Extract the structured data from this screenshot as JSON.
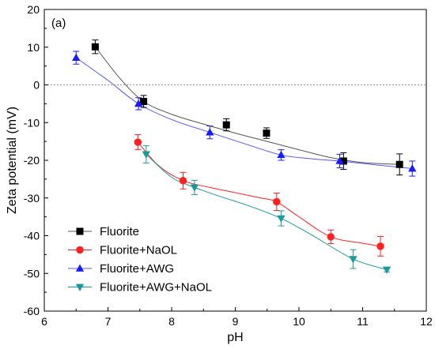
{
  "chart_data": {
    "type": "scatter",
    "panel_label": "(a)",
    "xlabel": "pH",
    "ylabel": "Zeta potential (mV)",
    "xlim": [
      6,
      12
    ],
    "ylim": [
      -60,
      20
    ],
    "xticks": [
      6,
      7,
      8,
      9,
      10,
      11,
      12
    ],
    "yticks": [
      -60,
      -50,
      -40,
      -30,
      -20,
      -10,
      0,
      10,
      20
    ],
    "zero_line": true,
    "legend_placement": "bottom-left",
    "series": [
      {
        "name": "Fluorite",
        "marker": "square",
        "color": "#000000",
        "line_color": "#555555",
        "x": [
          6.8,
          7.56,
          8.86,
          9.49,
          10.7,
          11.58
        ],
        "y": [
          10.1,
          -4.4,
          -10.6,
          -12.8,
          -20.2,
          -21.1
        ],
        "err": [
          1.8,
          1.6,
          1.6,
          1.4,
          2.2,
          2.8
        ],
        "fit_x": [
          6.8,
          7.2,
          7.56,
          8.0,
          8.5,
          9.0,
          9.5,
          10.0,
          10.5,
          11.0,
          11.58
        ],
        "fit_y": [
          10.1,
          1.5,
          -4.4,
          -7.8,
          -10.4,
          -12.8,
          -15.0,
          -17.2,
          -19.3,
          -20.6,
          -21.1
        ]
      },
      {
        "name": "Fluorite+NaOL",
        "marker": "circle",
        "color": "#ff2020",
        "line_color": "#ff2020",
        "x": [
          7.47,
          8.18,
          9.65,
          10.5,
          11.28
        ],
        "y": [
          -15.2,
          -25.4,
          -31.0,
          -40.3,
          -42.8
        ],
        "err": [
          2.0,
          2.2,
          2.3,
          1.8,
          2.6
        ],
        "fit_x": [
          7.47,
          7.8,
          8.18,
          8.6,
          9.0,
          9.4,
          9.65,
          10.0,
          10.5,
          11.0,
          11.28
        ],
        "fit_y": [
          -15.2,
          -21.5,
          -25.4,
          -27.2,
          -28.6,
          -30.0,
          -31.0,
          -35.0,
          -40.3,
          -42.0,
          -42.8
        ]
      },
      {
        "name": "Fluorite+AWG",
        "marker": "triangle-up",
        "color": "#1a1aff",
        "line_color": "#5555ff",
        "x": [
          6.5,
          7.48,
          8.6,
          9.72,
          10.64,
          11.78
        ],
        "y": [
          7.2,
          -5.0,
          -12.6,
          -18.6,
          -20.2,
          -22.2
        ],
        "err": [
          1.7,
          1.6,
          1.7,
          1.4,
          1.8,
          2.0
        ],
        "fit_x": [
          6.5,
          7.0,
          7.48,
          8.0,
          8.6,
          9.2,
          9.72,
          10.2,
          10.64,
          11.2,
          11.78
        ],
        "fit_y": [
          7.2,
          1.2,
          -5.0,
          -9.2,
          -12.6,
          -15.9,
          -18.6,
          -19.6,
          -20.2,
          -21.2,
          -22.2
        ]
      },
      {
        "name": "Fluorite+AWG+NaOL",
        "marker": "triangle-down",
        "color": "#1a9a9a",
        "line_color": "#1a9a9a",
        "x": [
          7.6,
          8.36,
          9.72,
          10.85,
          11.38
        ],
        "y": [
          -18.4,
          -27.2,
          -35.4,
          -46.2,
          -49.0
        ],
        "err": [
          2.3,
          1.9,
          2.0,
          2.5,
          0.6
        ],
        "fit_x": [
          7.6,
          8.0,
          8.36,
          8.8,
          9.2,
          9.72,
          10.2,
          10.85,
          11.38
        ],
        "fit_y": [
          -18.4,
          -24.5,
          -27.2,
          -29.8,
          -32.0,
          -35.4,
          -39.8,
          -46.2,
          -49.0
        ]
      }
    ]
  }
}
